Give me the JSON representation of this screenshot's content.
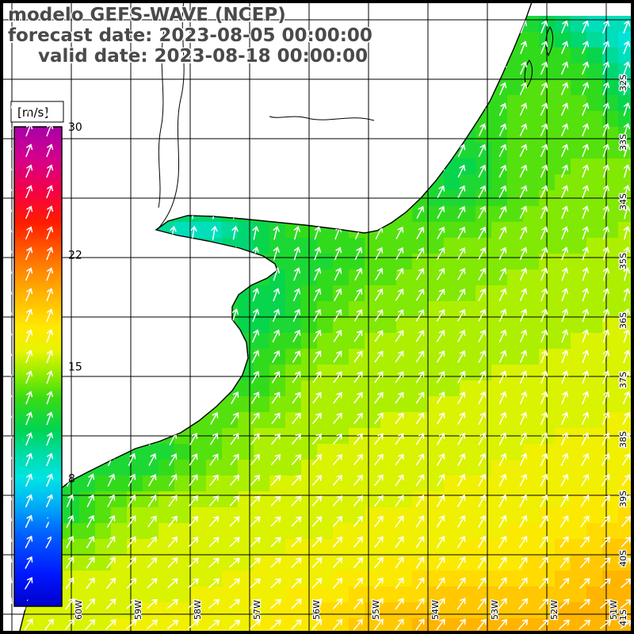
{
  "header": {
    "line1": "modelo GEFS-WAVE (NCEP)",
    "line2": "forecast date: 2023-08-05 00:00:00",
    "line3": "valid date: 2023-08-18 00:00:00"
  },
  "colorbar": {
    "unit": "[m/s]",
    "min": 0,
    "max": 30,
    "ticks": [
      30,
      22,
      15,
      8
    ],
    "stops": [
      {
        "v": 30,
        "c": "#a800a8"
      },
      {
        "v": 28,
        "c": "#d4008c"
      },
      {
        "v": 26,
        "c": "#f40048"
      },
      {
        "v": 24,
        "c": "#ff1c00"
      },
      {
        "v": 21.5,
        "c": "#ff7800"
      },
      {
        "v": 19.5,
        "c": "#ffb400"
      },
      {
        "v": 17.5,
        "c": "#ffe800"
      },
      {
        "v": 16,
        "c": "#e8f400"
      },
      {
        "v": 14.5,
        "c": "#90ec00"
      },
      {
        "v": 13,
        "c": "#38dc14"
      },
      {
        "v": 11,
        "c": "#00d454"
      },
      {
        "v": 9.5,
        "c": "#00dca8"
      },
      {
        "v": 8,
        "c": "#00e4e4"
      },
      {
        "v": 6.5,
        "c": "#00b4f4"
      },
      {
        "v": 4.5,
        "c": "#0060ff"
      },
      {
        "v": 2,
        "c": "#0018ff"
      },
      {
        "v": 0,
        "c": "#0000cc"
      }
    ]
  },
  "axes": {
    "lon_labels": [
      "60W",
      "59W",
      "58W",
      "57W",
      "56W",
      "55W",
      "54W",
      "53W",
      "52W",
      "51W"
    ],
    "lat_labels": [
      "32S",
      "33S",
      "34S",
      "35S",
      "36S",
      "37S",
      "38S",
      "39S",
      "40S",
      "41S"
    ]
  },
  "map": {
    "land_color": "#ffffff",
    "coastline_color": "#000000",
    "grid_color": "#000000",
    "frame_color": "#000000",
    "arrow_color": "#ffffff",
    "title_color": "#4a4a4a"
  },
  "field_summary": {
    "type": "heatmap",
    "quantity_unit": "m/s",
    "visible_value_range": [
      8,
      20
    ],
    "description": "Speed field over SW Atlantic off Rio de la Plata: cyan lows (~8-10 m/s) along the coast and estuary, green mid values (~12-14 m/s) over most of the ocean, yellow-orange highs (~16-20 m/s) toward the south-east; white arrows point roughly N to NE."
  }
}
